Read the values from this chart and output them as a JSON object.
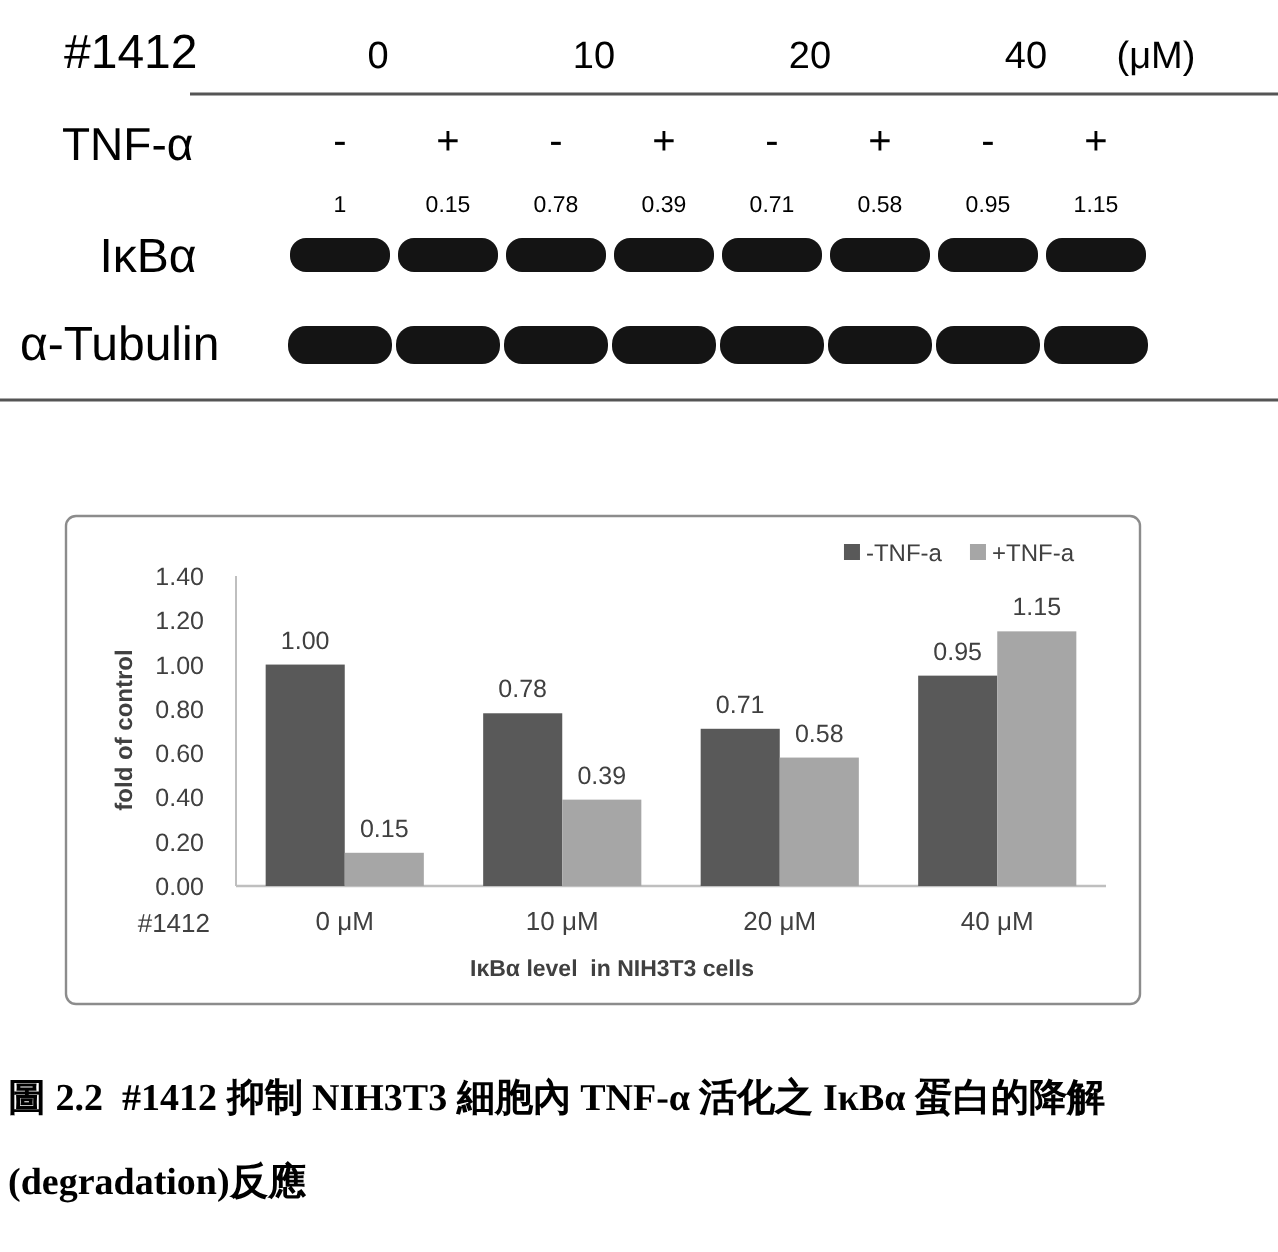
{
  "chart_data": [
    {
      "type": "other",
      "categories": [
        "-",
        "+",
        "-",
        "+",
        "-",
        "+",
        "-",
        "+"
      ],
      "values": [
        1,
        0.15,
        0.78,
        0.39,
        0.71,
        0.58,
        0.95,
        1.15
      ],
      "data_labels": true,
      "annotations": [
        "#1412",
        "0",
        "10",
        "20",
        "40",
        "(μM)",
        "TNF-α",
        "IκBα",
        "α-Tubulin"
      ]
    },
    {
      "type": "bar",
      "categories": [
        "0 μM",
        "10 μM",
        "20 μM",
        "40 μM"
      ],
      "series": [
        {
          "name": "-TNF-a",
          "color": "#595959",
          "values": [
            1.0,
            0.78,
            0.71,
            0.95
          ],
          "value_labels": [
            "1.00",
            "0.78",
            "0.71",
            "0.95"
          ]
        },
        {
          "name": "+TNF-a",
          "color": "#a6a6a6",
          "values": [
            0.15,
            0.39,
            0.58,
            1.15
          ],
          "value_labels": [
            "0.15",
            "0.39",
            "0.58",
            "1.15"
          ]
        }
      ],
      "xlabel": "IκBα level  in NIH3T3 cells",
      "ylabel": "fold of control",
      "ylim": [
        0,
        1.4
      ],
      "yticks": [
        {
          "value": 0,
          "label": "0.00"
        },
        {
          "value": 0.2,
          "label": "0.20"
        },
        {
          "value": 0.4,
          "label": "0.40"
        },
        {
          "value": 0.6,
          "label": "0.60"
        },
        {
          "value": 0.8,
          "label": "0.80"
        },
        {
          "value": 1,
          "label": "1.00"
        },
        {
          "value": 1.2,
          "label": "1.20"
        },
        {
          "value": 1.4,
          "label": "1.40"
        }
      ],
      "legend": "top right",
      "annotations": [
        "#1412",
        "圖 2.2  #1412 抑制 NIH3T3 細胞內 TNF-α 活化之 IκBα 蛋白的降解(degradation)反應"
      ]
    }
  ]
}
